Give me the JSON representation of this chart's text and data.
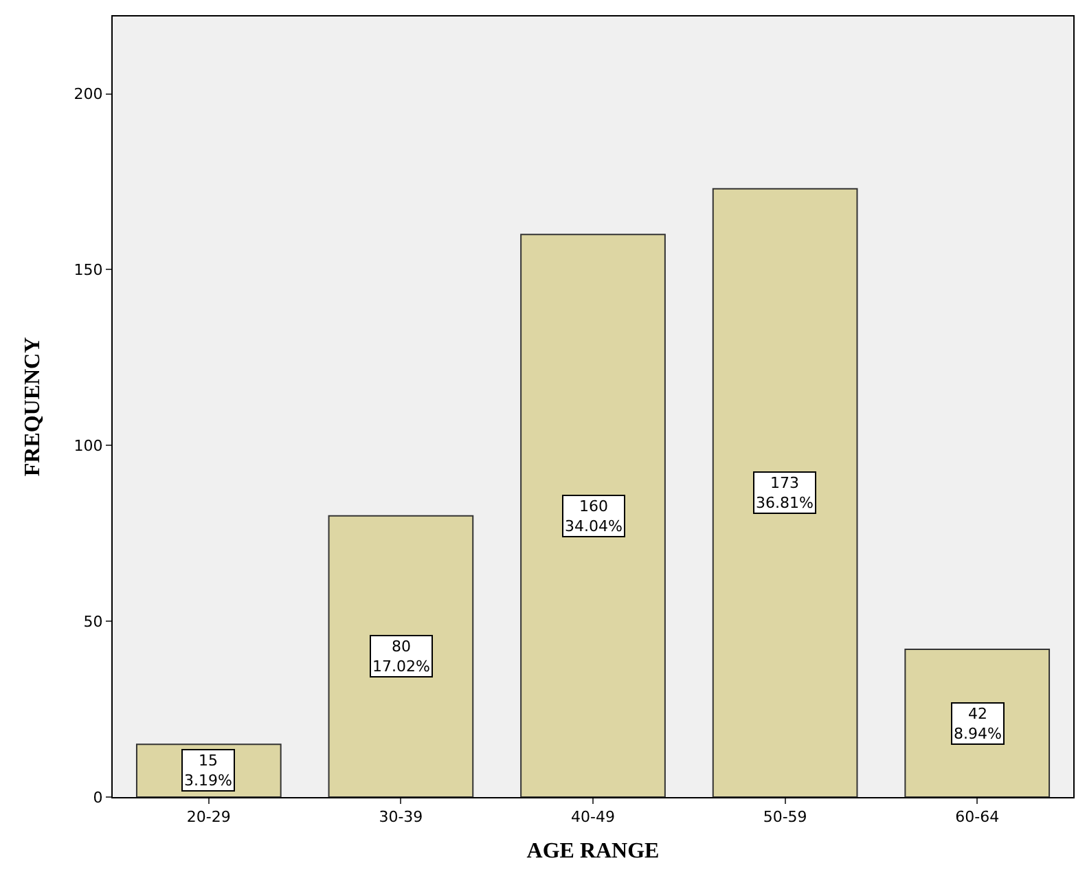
{
  "chart_data": {
    "type": "bar",
    "xlabel": "AGE RANGE",
    "ylabel": "FREQUENCY",
    "categories": [
      "20-29",
      "30-39",
      "40-49",
      "50-59",
      "60-64"
    ],
    "values": [
      15,
      80,
      160,
      173,
      42
    ],
    "value_labels": [
      "15\n3.19%",
      "80\n17.02%",
      "160\n34.04%",
      "173\n36.81%",
      "42\n8.94%"
    ],
    "color": "#ddd6a3",
    "ylim": [
      0,
      222
    ],
    "yticks": [
      0,
      50,
      100,
      150,
      200
    ],
    "grid": false,
    "legend": false
  }
}
